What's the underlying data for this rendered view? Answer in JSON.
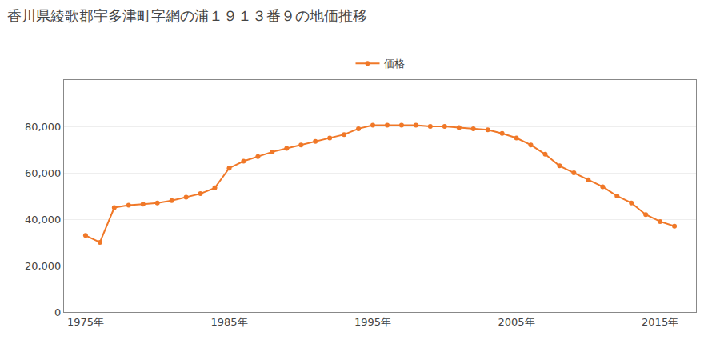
{
  "chart_data": {
    "type": "line",
    "title": "香川県綾歌郡宇多津町字網の浦１９１３番９の地価推移",
    "x": [
      1975,
      1976,
      1977,
      1978,
      1979,
      1980,
      1981,
      1982,
      1983,
      1984,
      1985,
      1986,
      1987,
      1988,
      1989,
      1990,
      1991,
      1992,
      1993,
      1994,
      1995,
      1996,
      1997,
      1998,
      1999,
      2000,
      2001,
      2002,
      2003,
      2004,
      2005,
      2006,
      2007,
      2008,
      2009,
      2010,
      2011,
      2012,
      2013,
      2014,
      2015,
      2016
    ],
    "series": [
      {
        "name": "価格",
        "color": "#f07828",
        "values": [
          33000,
          30000,
          45000,
          46000,
          46500,
          47000,
          48000,
          49500,
          51000,
          53500,
          62000,
          65000,
          67000,
          69000,
          70500,
          72000,
          73500,
          75000,
          76500,
          79000,
          80500,
          80500,
          80500,
          80500,
          80000,
          80000,
          79500,
          79000,
          78500,
          77000,
          75000,
          72000,
          68000,
          63000,
          60000,
          57000,
          54000,
          50000,
          47000,
          42000,
          39000,
          37000
        ]
      }
    ],
    "marker": "circle",
    "line_style": "solid",
    "xlim": [
      1973.5,
      2017.5
    ],
    "xticks": [
      {
        "value": 1975,
        "label": "1975年"
      },
      {
        "value": 1985,
        "label": "1985年"
      },
      {
        "value": 1995,
        "label": "1995年"
      },
      {
        "value": 2005,
        "label": "2005年"
      },
      {
        "value": 2015,
        "label": "2015年"
      }
    ],
    "ylim": [
      0,
      100000
    ],
    "yticks": [
      0,
      {
        "value": 20000,
        "label": "20,000"
      },
      {
        "value": 40000,
        "label": "40,000"
      },
      {
        "value": 60000,
        "label": "60,000"
      },
      {
        "value": 80000,
        "label": "80,000"
      }
    ],
    "grid": true,
    "legend": "top"
  }
}
